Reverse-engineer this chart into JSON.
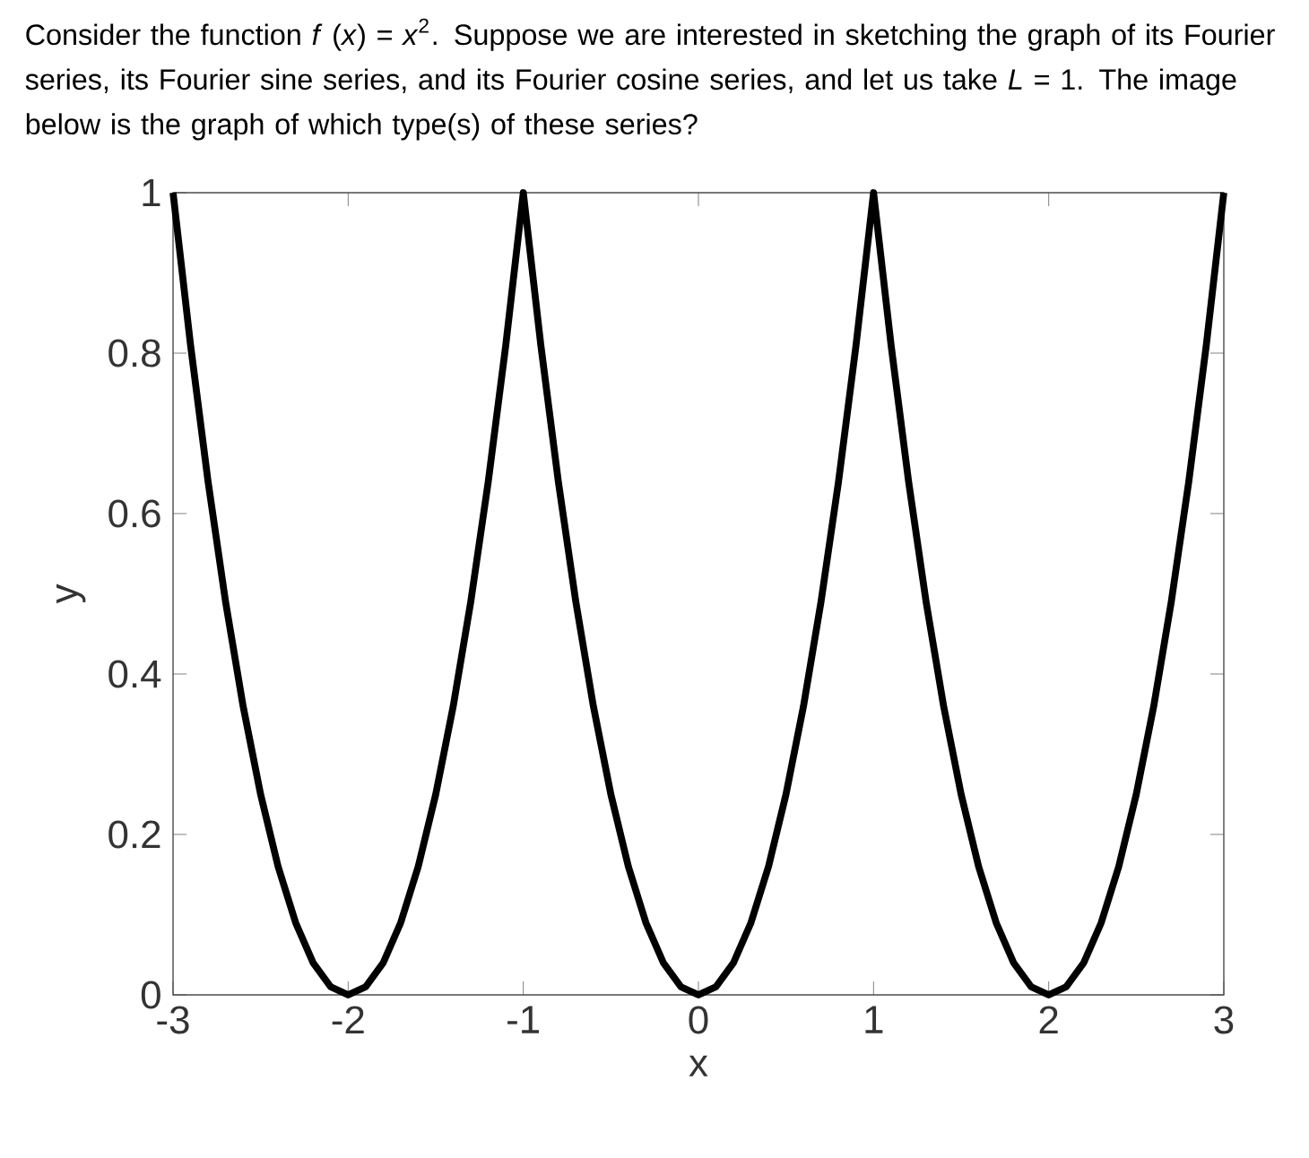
{
  "chart_data": {
    "type": "line",
    "title": "Consider the function *f* (*x*) = *x*$^{2}$. Suppose we are interested in sketching the graph of its Fourier series, its Fourier sine series, and its Fourier cosine series, and let us take *L* = 1. The image below is the graph of which type(s) of these series?",
    "xlabel": "x",
    "ylabel": "y",
    "x": [
      -3,
      -2.9,
      -2.8,
      -2.7,
      -2.6,
      -2.5,
      -2.4,
      -2.3,
      -2.2,
      -2.1,
      -2,
      -1.9,
      -1.8,
      -1.7,
      -1.6,
      -1.5,
      -1.4,
      -1.3,
      -1.2,
      -1.1,
      -1,
      -0.9,
      -0.8,
      -0.7,
      -0.6,
      -0.5,
      -0.4,
      -0.3,
      -0.2,
      -0.1,
      0,
      0.1,
      0.2,
      0.3,
      0.4,
      0.5,
      0.6,
      0.7,
      0.8,
      0.9,
      1,
      1.1,
      1.2,
      1.3,
      1.4,
      1.5,
      1.6,
      1.7,
      1.8,
      1.9,
      2,
      2.1,
      2.2,
      2.3,
      2.4,
      2.5,
      2.6,
      2.7,
      2.8,
      2.9,
      3
    ],
    "series": [
      {
        "color": "#000000",
        "values": [
          1,
          0.81,
          0.64,
          0.49,
          0.36,
          0.25,
          0.16,
          0.09,
          0.04,
          0.01,
          0,
          0.01,
          0.04,
          0.09,
          0.16,
          0.25,
          0.36,
          0.49,
          0.64,
          0.81,
          1,
          0.81,
          0.64,
          0.49,
          0.36,
          0.25,
          0.16,
          0.09,
          0.04,
          0.01,
          0,
          0.01,
          0.04,
          0.09,
          0.16,
          0.25,
          0.36,
          0.49,
          0.64,
          0.81,
          1,
          0.81,
          0.64,
          0.49,
          0.36,
          0.25,
          0.16,
          0.09,
          0.04,
          0.01,
          0,
          0.01,
          0.04,
          0.09,
          0.16,
          0.25,
          0.36,
          0.49,
          0.64,
          0.81,
          1
        ]
      }
    ],
    "xlim": [
      -3,
      3
    ],
    "ylim": [
      0,
      1
    ],
    "xticks": [
      -3,
      -2,
      -1,
      0,
      1,
      2,
      3
    ],
    "yticks": [
      0,
      0.2,
      0.4,
      0.6,
      0.8,
      1
    ],
    "line_style": "solid"
  }
}
